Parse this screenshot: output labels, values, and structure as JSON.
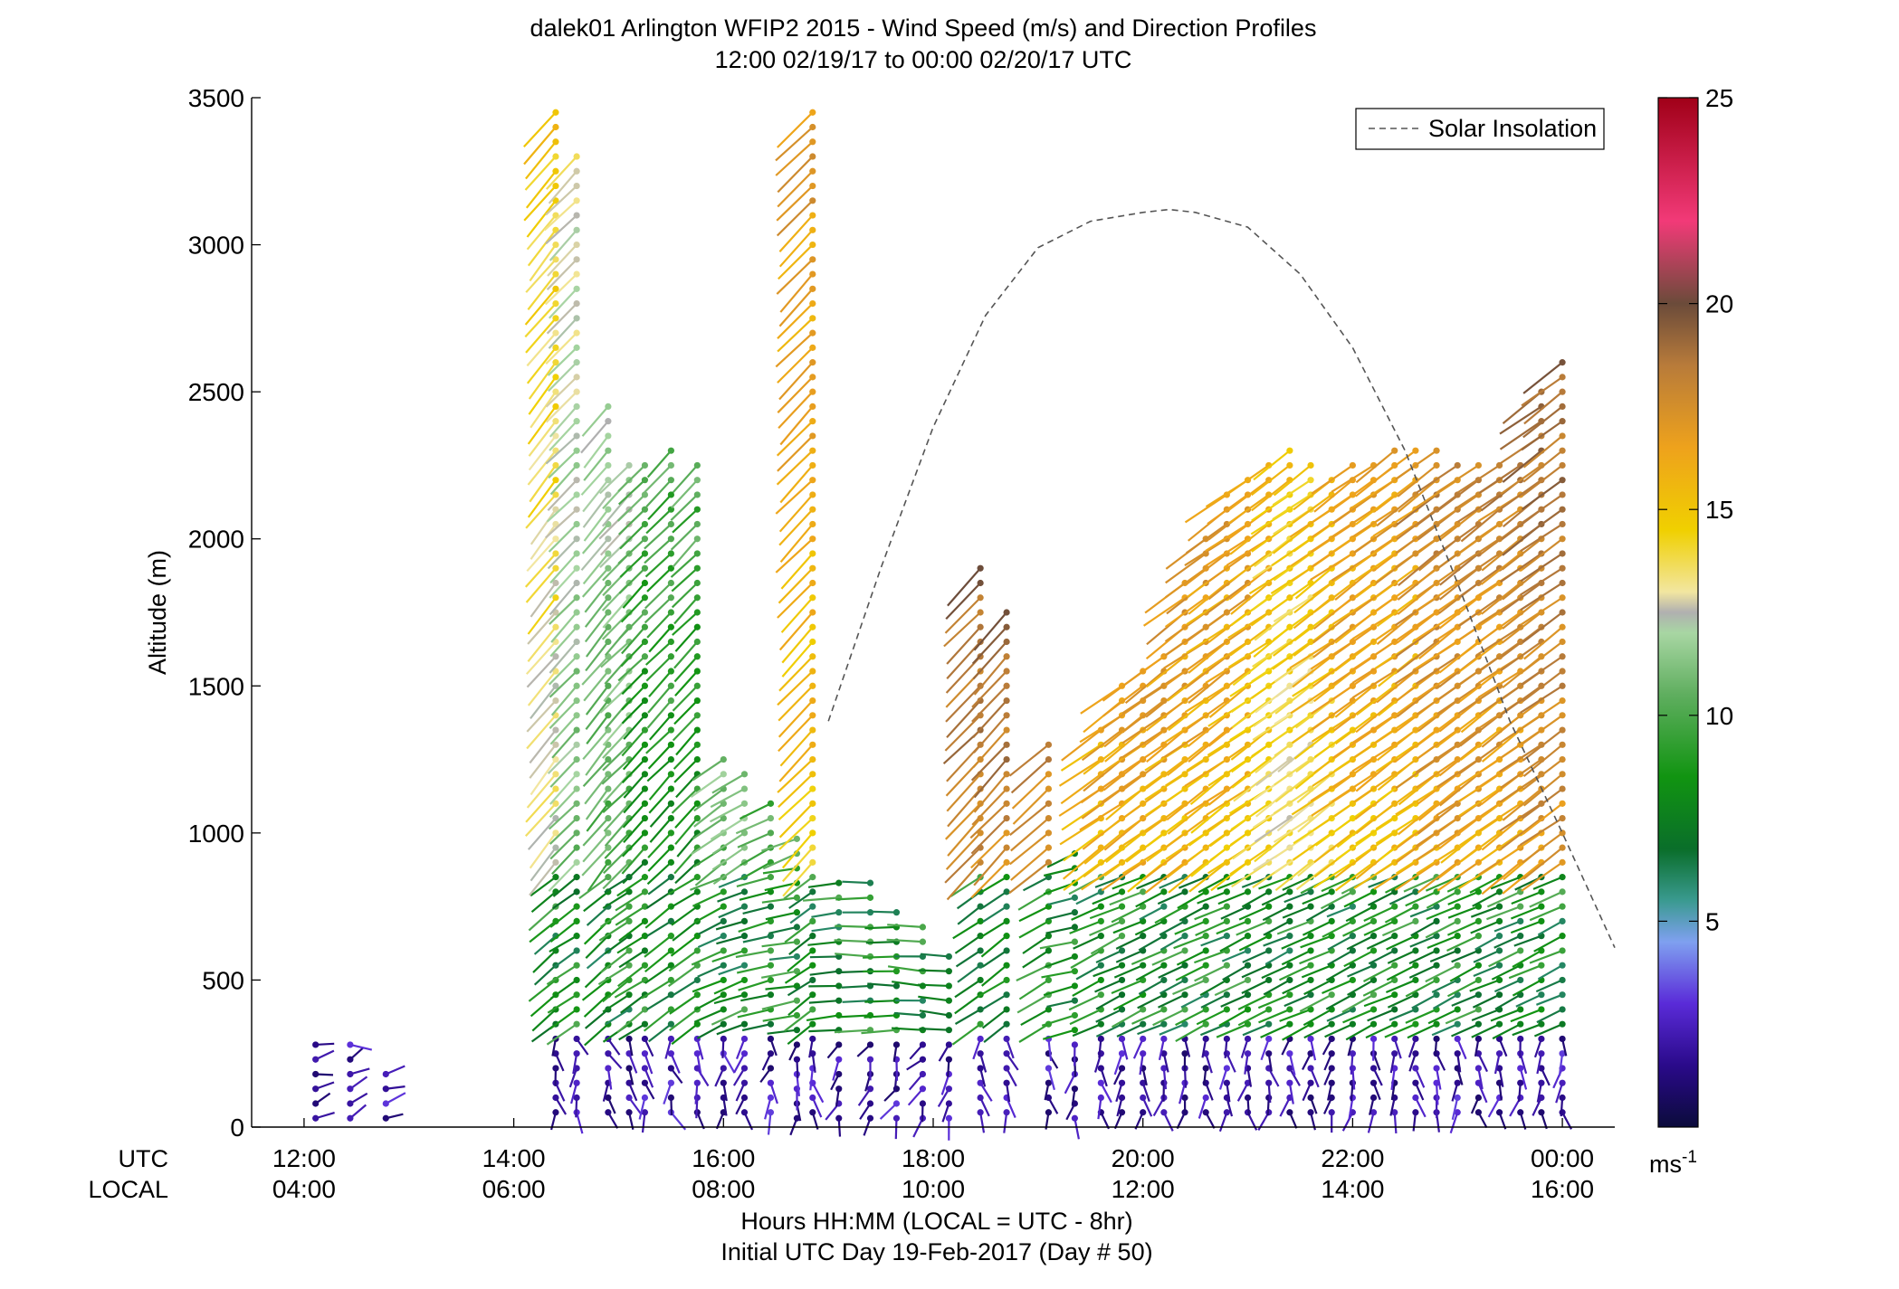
{
  "chart_data": {
    "type": "scatter",
    "title": "dalek01 Arlington WFIP2 2015 - Wind Speed (m/s) and Direction Profiles",
    "subtitle": "12:00 02/19/17 to 00:00 02/20/17  UTC",
    "ylabel": "Altitude (m)",
    "xlabel": "Hours HH:MM  (LOCAL = UTC - 8hr)",
    "xlabel2": "Initial UTC Day 19-Feb-2017 (Day # 50)",
    "utc_row_label": "UTC",
    "local_row_label": "LOCAL",
    "xlim": [
      11.5,
      24.5
    ],
    "ylim": [
      0,
      3500
    ],
    "x_ticks": [
      12,
      14,
      16,
      18,
      20,
      22,
      24
    ],
    "x_tick_labels_utc": [
      "12:00",
      "14:00",
      "16:00",
      "18:00",
      "20:00",
      "22:00",
      "00:00"
    ],
    "x_tick_labels_local": [
      "04:00",
      "06:00",
      "08:00",
      "10:00",
      "12:00",
      "14:00",
      "16:00"
    ],
    "y_ticks": [
      0,
      500,
      1000,
      1500,
      2000,
      2500,
      3000,
      3500
    ],
    "y_tick_labels": [
      "0",
      "500",
      "1000",
      "1500",
      "2000",
      "2500",
      "3000",
      "3500"
    ],
    "colorbar": {
      "range": [
        0,
        25
      ],
      "ticks": [
        5,
        10,
        15,
        20,
        25
      ],
      "tick_labels": [
        "5",
        "10",
        "15",
        "20",
        "25"
      ],
      "unit": "ms",
      "unit_exponent": "-1"
    },
    "legend": {
      "entries": [
        "Solar Insolation"
      ],
      "position": "top-right"
    },
    "solar_insolation": {
      "x": [
        17.0,
        17.5,
        18.0,
        18.5,
        19.0,
        19.5,
        20.0,
        20.25,
        20.5,
        21.0,
        21.5,
        22.0,
        22.5,
        23.0,
        23.5,
        24.0,
        24.5
      ],
      "y": [
        1380,
        1900,
        2380,
        2760,
        2990,
        3080,
        3110,
        3120,
        3110,
        3060,
        2900,
        2650,
        2300,
        1850,
        1380,
        1000,
        610
      ]
    },
    "profiles": [
      {
        "t": 12.11,
        "top": 290,
        "dir": 120,
        "ws": 3
      },
      {
        "t": 12.44,
        "top": 290,
        "dir": 125,
        "ws": 3
      },
      {
        "t": 12.78,
        "top": 200,
        "dir": 130,
        "ws": 2.5
      },
      {
        "t": 14.4,
        "top": 3450,
        "dir": 215,
        "ws": 13
      },
      {
        "t": 14.6,
        "top": 3300,
        "dir": 220,
        "ws": 11
      },
      {
        "t": 14.9,
        "top": 2450,
        "dir": 215,
        "ws": 10
      },
      {
        "t": 15.1,
        "top": 2250,
        "dir": 220,
        "ws": 10
      },
      {
        "t": 15.25,
        "top": 2280,
        "dir": 220,
        "ws": 8
      },
      {
        "t": 15.5,
        "top": 2300,
        "dir": 220,
        "ws": 8
      },
      {
        "t": 15.75,
        "top": 2250,
        "dir": 220,
        "ws": 8
      },
      {
        "t": 16.0,
        "top": 1250,
        "dir": 230,
        "ws": 9
      },
      {
        "t": 16.2,
        "top": 1200,
        "dir": 235,
        "ws": 9
      },
      {
        "t": 16.45,
        "top": 1100,
        "dir": 240,
        "ws": 8
      },
      {
        "t": 16.7,
        "top": 1000,
        "dir": 245,
        "ws": 8
      },
      {
        "t": 16.85,
        "top": 3450,
        "dir": 220,
        "ws": 15
      },
      {
        "t": 17.1,
        "top": 870,
        "dir": 250,
        "ws": 7
      },
      {
        "t": 17.4,
        "top": 830,
        "dir": 255,
        "ws": 7
      },
      {
        "t": 17.65,
        "top": 760,
        "dir": 255,
        "ws": 7
      },
      {
        "t": 17.9,
        "top": 700,
        "dir": 260,
        "ws": 6
      },
      {
        "t": 18.15,
        "top": 600,
        "dir": 260,
        "ws": 6
      },
      {
        "t": 18.45,
        "top": 1900,
        "dir": 220,
        "ws": 17
      },
      {
        "t": 18.7,
        "top": 1750,
        "dir": 220,
        "ws": 17
      },
      {
        "t": 19.1,
        "top": 1300,
        "dir": 225,
        "ws": 16
      },
      {
        "t": 19.35,
        "top": 950,
        "dir": 240,
        "ws": 6
      },
      {
        "t": 19.6,
        "top": 1350,
        "dir": 230,
        "ws": 14
      },
      {
        "t": 19.8,
        "top": 1500,
        "dir": 230,
        "ws": 15
      },
      {
        "t": 20.0,
        "top": 1550,
        "dir": 230,
        "ws": 15
      },
      {
        "t": 20.2,
        "top": 1600,
        "dir": 230,
        "ws": 15
      },
      {
        "t": 20.4,
        "top": 1850,
        "dir": 230,
        "ws": 15
      },
      {
        "t": 20.6,
        "top": 2000,
        "dir": 230,
        "ws": 15
      },
      {
        "t": 20.8,
        "top": 2150,
        "dir": 230,
        "ws": 15
      },
      {
        "t": 21.0,
        "top": 2200,
        "dir": 230,
        "ws": 15
      },
      {
        "t": 21.2,
        "top": 2250,
        "dir": 230,
        "ws": 14
      },
      {
        "t": 21.4,
        "top": 2300,
        "dir": 230,
        "ws": 13
      },
      {
        "t": 21.6,
        "top": 2250,
        "dir": 230,
        "ws": 13
      },
      {
        "t": 21.8,
        "top": 2200,
        "dir": 230,
        "ws": 14
      },
      {
        "t": 22.0,
        "top": 2250,
        "dir": 230,
        "ws": 15
      },
      {
        "t": 22.2,
        "top": 2250,
        "dir": 230,
        "ws": 15
      },
      {
        "t": 22.4,
        "top": 2300,
        "dir": 230,
        "ws": 15
      },
      {
        "t": 22.6,
        "top": 2300,
        "dir": 230,
        "ws": 15
      },
      {
        "t": 22.8,
        "top": 2300,
        "dir": 230,
        "ws": 16
      },
      {
        "t": 23.0,
        "top": 2250,
        "dir": 230,
        "ws": 16
      },
      {
        "t": 23.2,
        "top": 2250,
        "dir": 230,
        "ws": 16
      },
      {
        "t": 23.4,
        "top": 2250,
        "dir": 230,
        "ws": 16
      },
      {
        "t": 23.6,
        "top": 2250,
        "dir": 230,
        "ws": 16
      },
      {
        "t": 23.8,
        "top": 2500,
        "dir": 230,
        "ws": 17
      },
      {
        "t": 24.0,
        "top": 2600,
        "dir": 230,
        "ws": 17
      }
    ]
  }
}
